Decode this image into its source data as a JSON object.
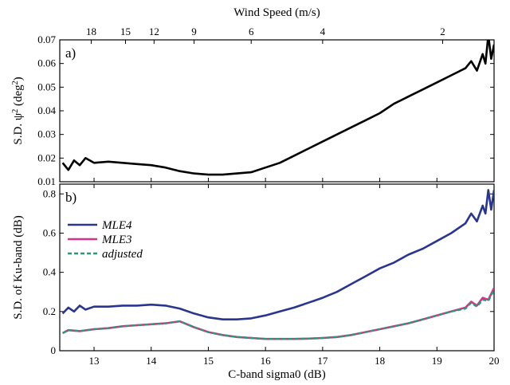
{
  "chart_data": [
    {
      "panel": "a)",
      "type": "line",
      "ylabel": "S.D. ψ² (deg²)",
      "xlabel": "",
      "xlim": [
        12.4,
        20.0
      ],
      "ylim": [
        0.01,
        0.07
      ],
      "yticks": [
        "0.01",
        "0.02",
        "0.03",
        "0.04",
        "0.05",
        "0.06",
        "0.07"
      ],
      "top_axis": {
        "label": "Wind Speed (m/s)",
        "ticks": [
          {
            "label": "18",
            "x": 12.95
          },
          {
            "label": "15",
            "x": 13.55
          },
          {
            "label": "12",
            "x": 14.05
          },
          {
            "label": "9",
            "x": 14.75
          },
          {
            "label": "6",
            "x": 15.75
          },
          {
            "label": "4",
            "x": 17.0
          },
          {
            "label": "2",
            "x": 19.1
          }
        ]
      },
      "series": [
        {
          "name": "",
          "color": "#000000",
          "x": [
            12.45,
            12.55,
            12.65,
            12.75,
            12.85,
            13.0,
            13.25,
            13.5,
            13.75,
            14.0,
            14.25,
            14.5,
            14.75,
            15.0,
            15.25,
            15.5,
            15.75,
            16.0,
            16.25,
            16.5,
            16.75,
            17.0,
            17.25,
            17.5,
            17.75,
            18.0,
            18.25,
            18.5,
            18.75,
            19.0,
            19.25,
            19.5,
            19.6,
            19.7,
            19.8,
            19.85,
            19.9,
            19.95,
            20.0
          ],
          "values": [
            0.018,
            0.015,
            0.019,
            0.017,
            0.02,
            0.018,
            0.0185,
            0.018,
            0.0175,
            0.017,
            0.016,
            0.0145,
            0.0135,
            0.013,
            0.013,
            0.0135,
            0.014,
            0.016,
            0.018,
            0.021,
            0.024,
            0.027,
            0.03,
            0.033,
            0.036,
            0.039,
            0.043,
            0.046,
            0.049,
            0.052,
            0.055,
            0.058,
            0.061,
            0.057,
            0.064,
            0.06,
            0.072,
            0.062,
            0.068
          ]
        }
      ]
    },
    {
      "panel": "b)",
      "type": "line",
      "xlabel": "C-band sigma0 (dB)",
      "ylabel": "S.D. of Ku-band (dB)",
      "xlim": [
        12.4,
        20.0
      ],
      "ylim": [
        0,
        0.85
      ],
      "xticks": [
        "13",
        "14",
        "15",
        "16",
        "17",
        "18",
        "19",
        "20"
      ],
      "yticks": [
        "0",
        "0.2",
        "0.4",
        "0.6",
        "0.8"
      ],
      "legend": "top-left",
      "series": [
        {
          "name": "MLE4",
          "color": "#2a3590",
          "x": [
            12.45,
            12.55,
            12.65,
            12.75,
            12.85,
            13.0,
            13.25,
            13.5,
            13.75,
            14.0,
            14.25,
            14.5,
            14.75,
            15.0,
            15.25,
            15.5,
            15.75,
            16.0,
            16.25,
            16.5,
            16.75,
            17.0,
            17.25,
            17.5,
            17.75,
            18.0,
            18.25,
            18.5,
            18.75,
            19.0,
            19.25,
            19.5,
            19.6,
            19.7,
            19.8,
            19.85,
            19.9,
            19.95,
            20.0
          ],
          "values": [
            0.19,
            0.22,
            0.2,
            0.23,
            0.21,
            0.225,
            0.225,
            0.23,
            0.23,
            0.235,
            0.23,
            0.215,
            0.19,
            0.17,
            0.16,
            0.16,
            0.165,
            0.18,
            0.2,
            0.22,
            0.245,
            0.27,
            0.3,
            0.34,
            0.38,
            0.42,
            0.45,
            0.49,
            0.52,
            0.56,
            0.6,
            0.65,
            0.7,
            0.66,
            0.74,
            0.7,
            0.82,
            0.72,
            0.82
          ]
        },
        {
          "name": "MLE3",
          "color": "#d8318a",
          "x": [
            12.45,
            12.55,
            12.75,
            13.0,
            13.25,
            13.5,
            13.75,
            14.0,
            14.25,
            14.5,
            14.75,
            15.0,
            15.25,
            15.5,
            15.75,
            16.0,
            16.25,
            16.5,
            16.75,
            17.0,
            17.25,
            17.5,
            17.75,
            18.0,
            18.25,
            18.5,
            18.75,
            19.0,
            19.25,
            19.5,
            19.6,
            19.7,
            19.8,
            19.9,
            20.0
          ],
          "values": [
            0.09,
            0.105,
            0.1,
            0.11,
            0.115,
            0.125,
            0.13,
            0.135,
            0.14,
            0.15,
            0.12,
            0.095,
            0.08,
            0.07,
            0.065,
            0.06,
            0.06,
            0.06,
            0.062,
            0.065,
            0.07,
            0.08,
            0.095,
            0.11,
            0.125,
            0.14,
            0.16,
            0.18,
            0.2,
            0.22,
            0.25,
            0.23,
            0.27,
            0.26,
            0.32
          ]
        },
        {
          "name": "adjusted",
          "color": "#1f9e78",
          "x": [
            12.45,
            12.55,
            12.75,
            13.0,
            13.25,
            13.5,
            13.75,
            14.0,
            14.25,
            14.5,
            14.75,
            15.0,
            15.25,
            15.5,
            15.75,
            16.0,
            16.25,
            16.5,
            16.75,
            17.0,
            17.25,
            17.5,
            17.75,
            18.0,
            18.25,
            18.5,
            18.75,
            19.0,
            19.25,
            19.5,
            19.6,
            19.7,
            19.8,
            19.9,
            20.0
          ],
          "values": [
            0.09,
            0.105,
            0.1,
            0.11,
            0.115,
            0.125,
            0.13,
            0.135,
            0.14,
            0.15,
            0.12,
            0.095,
            0.08,
            0.07,
            0.065,
            0.06,
            0.06,
            0.06,
            0.062,
            0.065,
            0.07,
            0.08,
            0.095,
            0.11,
            0.125,
            0.14,
            0.16,
            0.18,
            0.2,
            0.215,
            0.245,
            0.225,
            0.26,
            0.255,
            0.31
          ]
        }
      ]
    }
  ]
}
